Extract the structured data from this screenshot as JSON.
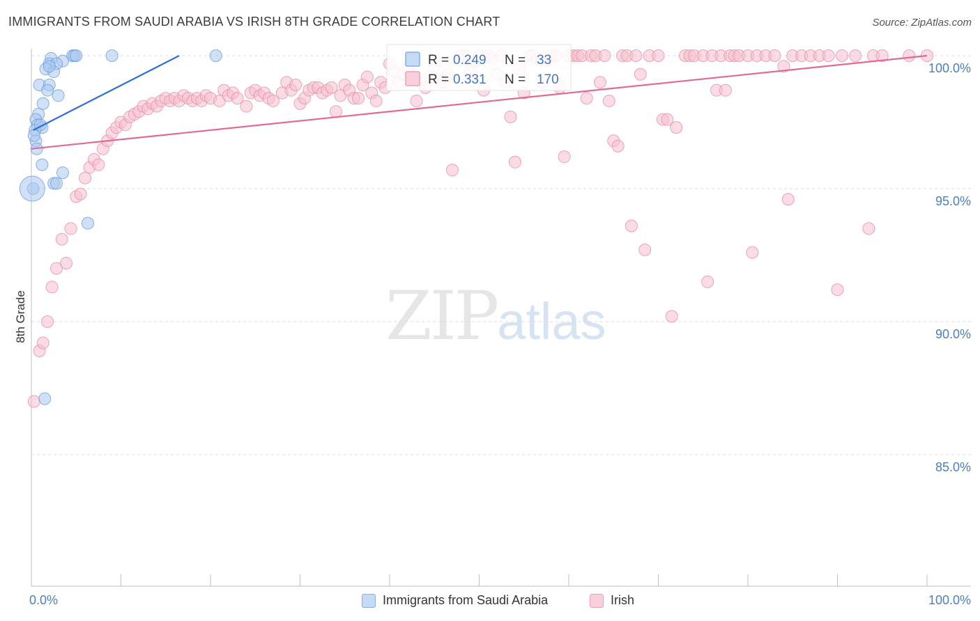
{
  "title": "IMMIGRANTS FROM SAUDI ARABIA VS IRISH 8TH GRADE CORRELATION CHART",
  "source": "Source: ZipAtlas.com",
  "watermark": {
    "zip": "ZIP",
    "atlas": "atlas"
  },
  "chart_data": {
    "type": "scatter",
    "xlabel": "",
    "ylabel": "8th Grade",
    "xlim": [
      0,
      100
    ],
    "ylim": [
      80.5,
      100.2
    ],
    "x_tick_labels": {
      "left": "0.0%",
      "right": "100.0%"
    },
    "y_ticks": [
      {
        "value": 100,
        "label": "100.0%"
      },
      {
        "value": 95,
        "label": "95.0%"
      },
      {
        "value": 90,
        "label": "90.0%"
      },
      {
        "value": 85,
        "label": "85.0%"
      }
    ],
    "legend": {
      "placement": "top-center",
      "rows": [
        {
          "r_label": "R =",
          "r_value": "0.249",
          "n_label": "N =",
          "n_value": "33"
        },
        {
          "r_label": "R =",
          "r_value": "0.331",
          "n_label": "N =",
          "n_value": "170"
        }
      ]
    },
    "series": [
      {
        "name": "Immigrants from Saudi Arabia",
        "fill": "#a9c8f0",
        "stroke": "#6d9fdc",
        "line_color": "#2f6fd1",
        "trend": {
          "x": [
            0.2,
            16.5
          ],
          "y": [
            97.2,
            100.0
          ]
        },
        "points": [
          [
            2.2,
            99.9
          ],
          [
            3.5,
            99.8
          ],
          [
            4.6,
            100
          ],
          [
            4.8,
            100
          ],
          [
            5.0,
            100
          ],
          [
            9.0,
            100
          ],
          [
            20.6,
            100
          ],
          [
            2.0,
            99.7
          ],
          [
            2.8,
            99.7
          ],
          [
            1.6,
            99.5
          ],
          [
            2.5,
            99.4
          ],
          [
            0.9,
            98.9
          ],
          [
            2.0,
            98.9
          ],
          [
            1.8,
            98.7
          ],
          [
            3.0,
            98.5
          ],
          [
            1.3,
            98.2
          ],
          [
            0.8,
            97.8
          ],
          [
            0.5,
            97.6
          ],
          [
            0.7,
            97.4
          ],
          [
            1.2,
            97.3
          ],
          [
            0.4,
            97.2
          ],
          [
            0.5,
            96.8
          ],
          [
            0.6,
            96.5
          ],
          [
            1.2,
            95.9
          ],
          [
            3.5,
            95.6
          ],
          [
            2.5,
            95.2
          ],
          [
            2.8,
            95.2
          ],
          [
            6.3,
            93.7
          ],
          [
            1.5,
            87.1
          ],
          [
            0.2,
            95.0
          ],
          [
            0.3,
            97.0
          ],
          [
            1.0,
            97.4
          ],
          [
            2.0,
            99.6
          ]
        ],
        "large_point": [
          0.1,
          95.0
        ]
      },
      {
        "name": "Irish",
        "fill": "#f7bfcd",
        "stroke": "#e590a8",
        "line_color": "#e06a93",
        "trend": {
          "x": [
            0,
            100
          ],
          "y": [
            96.5,
            100.0
          ]
        },
        "points": [
          [
            0.3,
            87.0
          ],
          [
            0.9,
            88.9
          ],
          [
            1.3,
            89.2
          ],
          [
            1.8,
            90.0
          ],
          [
            2.3,
            91.3
          ],
          [
            2.8,
            92.0
          ],
          [
            3.4,
            93.1
          ],
          [
            3.9,
            92.2
          ],
          [
            4.4,
            93.5
          ],
          [
            5.0,
            94.7
          ],
          [
            5.5,
            94.8
          ],
          [
            6.0,
            95.4
          ],
          [
            6.5,
            95.8
          ],
          [
            7.0,
            96.1
          ],
          [
            7.5,
            95.9
          ],
          [
            8.0,
            96.5
          ],
          [
            8.5,
            96.8
          ],
          [
            9.0,
            97.1
          ],
          [
            9.5,
            97.3
          ],
          [
            10.0,
            97.5
          ],
          [
            10.5,
            97.4
          ],
          [
            11.0,
            97.7
          ],
          [
            11.5,
            97.8
          ],
          [
            12.0,
            97.9
          ],
          [
            12.5,
            98.1
          ],
          [
            13.0,
            98.0
          ],
          [
            13.5,
            98.2
          ],
          [
            14.0,
            98.1
          ],
          [
            14.5,
            98.3
          ],
          [
            15.0,
            98.4
          ],
          [
            15.5,
            98.3
          ],
          [
            16.0,
            98.4
          ],
          [
            16.5,
            98.3
          ],
          [
            17.0,
            98.5
          ],
          [
            17.5,
            98.4
          ],
          [
            18.0,
            98.3
          ],
          [
            18.5,
            98.4
          ],
          [
            19.0,
            98.3
          ],
          [
            19.5,
            98.5
          ],
          [
            20.0,
            98.4
          ],
          [
            21.0,
            98.3
          ],
          [
            21.5,
            98.7
          ],
          [
            22.0,
            98.5
          ],
          [
            22.5,
            98.6
          ],
          [
            23.0,
            98.4
          ],
          [
            24.0,
            98.1
          ],
          [
            24.5,
            98.6
          ],
          [
            25.0,
            98.7
          ],
          [
            25.5,
            98.5
          ],
          [
            26.0,
            98.6
          ],
          [
            26.5,
            98.4
          ],
          [
            27.0,
            98.3
          ],
          [
            28.0,
            98.6
          ],
          [
            28.5,
            99.0
          ],
          [
            29.0,
            98.7
          ],
          [
            29.5,
            98.9
          ],
          [
            30.0,
            98.2
          ],
          [
            30.5,
            98.4
          ],
          [
            31.0,
            98.7
          ],
          [
            31.5,
            98.8
          ],
          [
            32.0,
            98.8
          ],
          [
            32.5,
            98.6
          ],
          [
            33.0,
            98.7
          ],
          [
            33.5,
            98.8
          ],
          [
            34.0,
            97.9
          ],
          [
            34.5,
            98.5
          ],
          [
            35.0,
            98.9
          ],
          [
            35.5,
            98.7
          ],
          [
            36.0,
            98.4
          ],
          [
            36.5,
            98.4
          ],
          [
            37.0,
            98.9
          ],
          [
            37.5,
            99.2
          ],
          [
            38.0,
            98.6
          ],
          [
            38.5,
            98.3
          ],
          [
            39.0,
            99.0
          ],
          [
            39.5,
            98.8
          ],
          [
            40.0,
            99.7
          ],
          [
            40.5,
            99.4
          ],
          [
            41.0,
            99.0
          ],
          [
            41.5,
            99.3
          ],
          [
            42.0,
            99.5
          ],
          [
            43.0,
            98.3
          ],
          [
            43.5,
            99.0
          ],
          [
            44.0,
            98.8
          ],
          [
            44.5,
            99.2
          ],
          [
            45.0,
            99.6
          ],
          [
            45.5,
            99.1
          ],
          [
            46.0,
            99.0
          ],
          [
            46.5,
            99.3
          ],
          [
            47.0,
            95.7
          ],
          [
            48.0,
            100
          ],
          [
            48.5,
            100
          ],
          [
            49.0,
            99.4
          ],
          [
            49.5,
            99.8
          ],
          [
            50.0,
            100
          ],
          [
            50.5,
            98.7
          ],
          [
            51.0,
            100
          ],
          [
            51.5,
            99.9
          ],
          [
            52.0,
            99.3
          ],
          [
            52.5,
            100
          ],
          [
            53.0,
            99.0
          ],
          [
            53.5,
            97.7
          ],
          [
            54.0,
            96.0
          ],
          [
            54.5,
            99.5
          ],
          [
            55.0,
            98.6
          ],
          [
            55.5,
            100
          ],
          [
            56.0,
            100
          ],
          [
            56.5,
            99.9
          ],
          [
            57.0,
            99.0
          ],
          [
            57.5,
            99.8
          ],
          [
            58.0,
            100
          ],
          [
            58.5,
            100
          ],
          [
            59.0,
            98.8
          ],
          [
            59.5,
            96.2
          ],
          [
            60.0,
            100
          ],
          [
            60.5,
            100
          ],
          [
            61.0,
            100
          ],
          [
            61.5,
            100
          ],
          [
            62.0,
            98.4
          ],
          [
            62.5,
            100
          ],
          [
            63.0,
            100
          ],
          [
            63.5,
            99.0
          ],
          [
            64.0,
            100
          ],
          [
            64.5,
            98.3
          ],
          [
            65.0,
            96.8
          ],
          [
            65.5,
            96.6
          ],
          [
            66.0,
            100
          ],
          [
            66.5,
            100
          ],
          [
            67.0,
            93.6
          ],
          [
            67.5,
            100
          ],
          [
            68.0,
            99.3
          ],
          [
            68.5,
            92.7
          ],
          [
            69.0,
            100
          ],
          [
            70.0,
            100
          ],
          [
            70.5,
            97.6
          ],
          [
            71.0,
            97.6
          ],
          [
            71.5,
            90.2
          ],
          [
            72.0,
            97.3
          ],
          [
            73.0,
            100
          ],
          [
            73.5,
            100
          ],
          [
            74.0,
            100
          ],
          [
            75.0,
            100
          ],
          [
            75.5,
            91.5
          ],
          [
            76.0,
            100
          ],
          [
            76.5,
            98.7
          ],
          [
            77.0,
            100
          ],
          [
            77.5,
            98.7
          ],
          [
            78.0,
            100
          ],
          [
            78.5,
            100
          ],
          [
            79.0,
            100
          ],
          [
            80.0,
            100
          ],
          [
            80.5,
            92.6
          ],
          [
            81.0,
            100
          ],
          [
            82.0,
            100
          ],
          [
            83.0,
            100
          ],
          [
            84.0,
            99.6
          ],
          [
            84.5,
            94.6
          ],
          [
            85.0,
            100
          ],
          [
            86.0,
            100
          ],
          [
            87.0,
            100
          ],
          [
            88.0,
            100
          ],
          [
            89.0,
            100
          ],
          [
            90.0,
            91.2
          ],
          [
            90.5,
            100
          ],
          [
            92.0,
            100
          ],
          [
            93.5,
            93.5
          ],
          [
            94.0,
            100
          ],
          [
            95.0,
            100
          ],
          [
            98.0,
            100
          ],
          [
            100.0,
            100
          ]
        ]
      }
    ]
  }
}
